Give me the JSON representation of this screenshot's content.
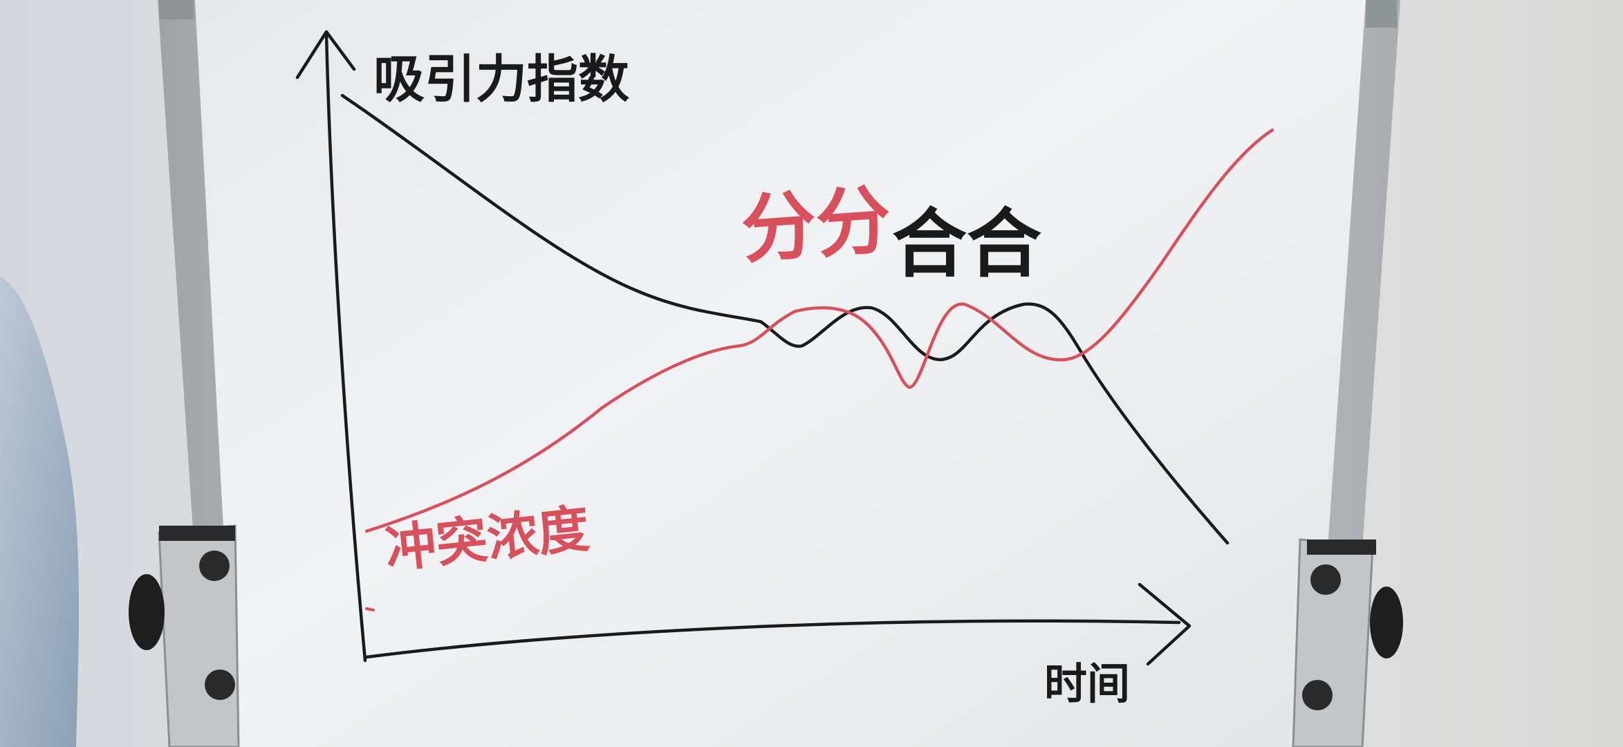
{
  "board": {
    "y_axis_label": "吸引力指数",
    "x_axis_label": "时间",
    "title_red": "分分",
    "title_black": "合合",
    "red_curve_label": "冲突浓度"
  },
  "colors": {
    "wall": "#dfe2e4",
    "board_surface": "#eef0f1",
    "frame": "#b9bdbf",
    "marker_black": "#1a1a1a",
    "marker_red": "#d9505d"
  },
  "curves": {
    "black_curve": "吸引力指数",
    "red_curve": "冲突浓度"
  }
}
